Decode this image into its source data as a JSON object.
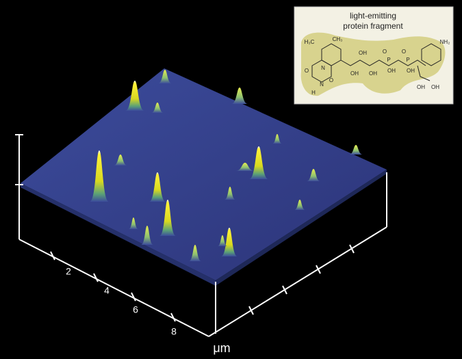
{
  "inset": {
    "title_lines": [
      "light-emitting",
      "protein fragment"
    ],
    "atom_labels": [
      "H₃C",
      "CH₃",
      "OH",
      "OH",
      "OH",
      "O",
      "O",
      "P",
      "P",
      "OH",
      "OH",
      "NH₂",
      "N",
      "N",
      "H",
      "O",
      "O",
      "OH",
      "OH"
    ]
  },
  "axis": {
    "tick_labels": [
      "2",
      "4",
      "6",
      "8"
    ],
    "unit": "μm"
  }
}
